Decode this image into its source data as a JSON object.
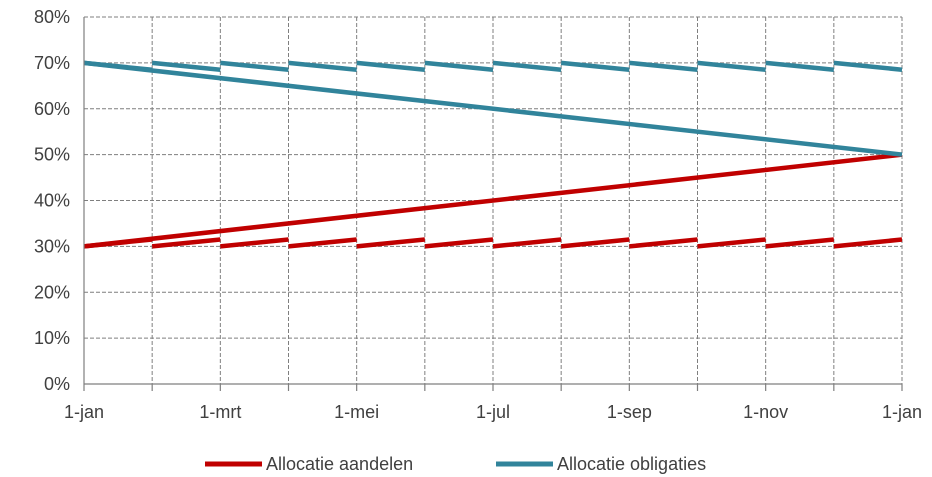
{
  "chart_data": {
    "type": "line",
    "y_ticks": [
      "0%",
      "10%",
      "20%",
      "30%",
      "40%",
      "50%",
      "60%",
      "70%",
      "80%"
    ],
    "ylim": [
      0,
      80
    ],
    "x_tick_labels": [
      "1-jan",
      "1-mrt",
      "1-mei",
      "1-jul",
      "1-sep",
      "1-nov",
      "1-jan"
    ],
    "x_period_count": 12,
    "grid": true,
    "legend_position": "bottom",
    "series": [
      {
        "name": "Allocatie aandelen",
        "color": "#c00000",
        "kind": "trend",
        "x": [
          0,
          12
        ],
        "values": [
          30,
          50
        ]
      },
      {
        "name": "Allocatie obligaties",
        "color": "#31849b",
        "kind": "trend",
        "x": [
          0,
          12
        ],
        "values": [
          70,
          50
        ]
      },
      {
        "name": "Allocatie aandelen",
        "color": "#c00000",
        "kind": "sawtooth",
        "highlight": true,
        "segments": [
          [
            30,
            31.5
          ],
          [
            30,
            31.5
          ],
          [
            30,
            31.5
          ],
          [
            30,
            31.5
          ],
          [
            30,
            31.5
          ],
          [
            30,
            31.5
          ],
          [
            30,
            31.5
          ],
          [
            30,
            31.5
          ],
          [
            30,
            31.5
          ],
          [
            30,
            31.5
          ],
          [
            30,
            31.5
          ],
          [
            30,
            31.5
          ]
        ]
      },
      {
        "name": "Allocatie obligaties",
        "color": "#31849b",
        "kind": "sawtooth",
        "highlight": true,
        "segments": [
          [
            70,
            68.5
          ],
          [
            70,
            68.5
          ],
          [
            70,
            68.5
          ],
          [
            70,
            68.5
          ],
          [
            70,
            68.5
          ],
          [
            70,
            68.5
          ],
          [
            70,
            68.5
          ],
          [
            70,
            68.5
          ],
          [
            70,
            68.5
          ],
          [
            70,
            68.5
          ],
          [
            70,
            68.5
          ],
          [
            70,
            68.5
          ]
        ]
      }
    ],
    "highlight_color": "#c4e86a",
    "highlight_inner_color": "#8e5cc2",
    "legend": [
      {
        "label": "Allocatie aandelen",
        "color": "#c00000"
      },
      {
        "label": "Allocatie obligaties",
        "color": "#31849b"
      }
    ]
  }
}
